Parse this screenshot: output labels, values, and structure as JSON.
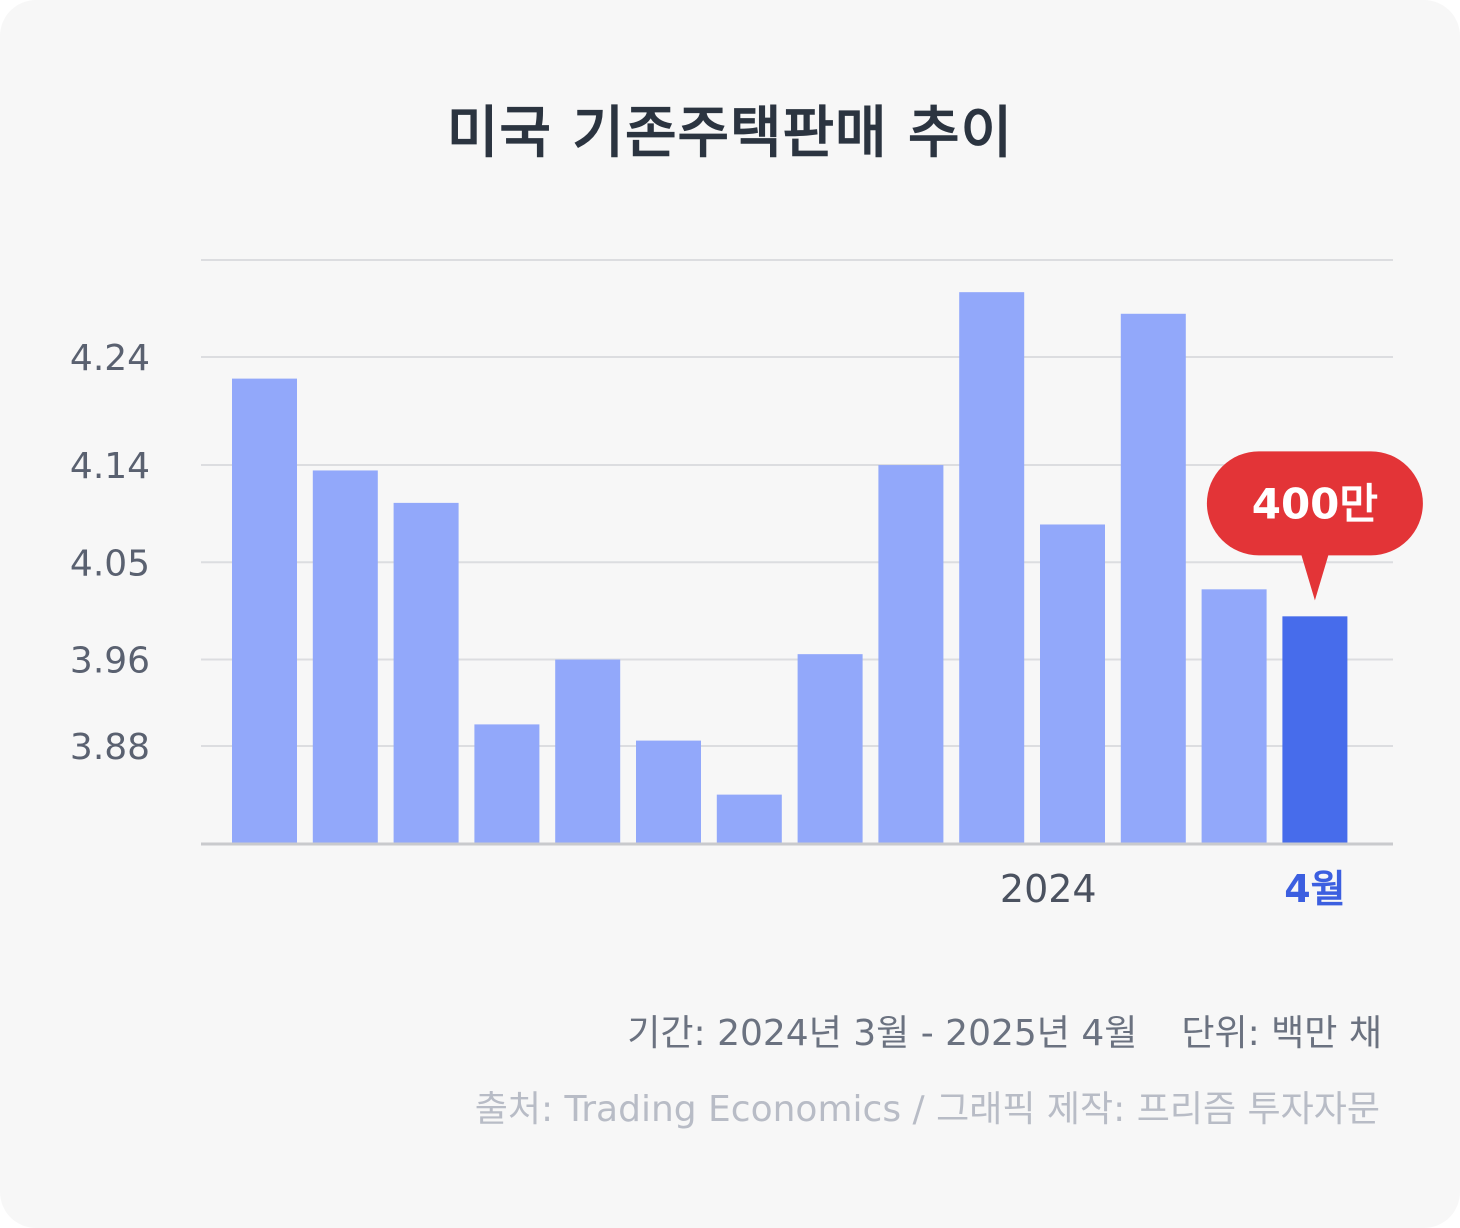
{
  "title": "미국 기존주택판매 추이",
  "chart_data": {
    "type": "bar",
    "title": "미국 기존주택판매 추이",
    "ylim": [
      3.78,
      4.34
    ],
    "yticks": [
      3.88,
      3.96,
      4.05,
      4.14,
      4.24
    ],
    "ytick_labels": [
      "3.88",
      "3.96",
      "4.05",
      "4.14",
      "4.24"
    ],
    "grid": true,
    "values": [
      4.22,
      4.135,
      4.105,
      3.9,
      3.96,
      3.885,
      3.835,
      3.965,
      4.14,
      4.3,
      4.085,
      4.28,
      4.025,
      4.0
    ],
    "x_labels": [
      {
        "index": 9.7,
        "text": "2024"
      },
      {
        "index": 13,
        "text": "4월"
      }
    ],
    "highlight_index": 13,
    "callout": "400만",
    "colors": {
      "bar": "#92a8fa",
      "highlight": "#476ceb",
      "callout": "#e33437",
      "highlight_label": "#3c5fe0"
    }
  },
  "footer": {
    "period": "기간: 2024년 3월 - 2025년 4월",
    "unit": "단위: 백만 채",
    "source": "출처: Trading Economics / 그래픽 제작: 프리즘 투자자문"
  }
}
